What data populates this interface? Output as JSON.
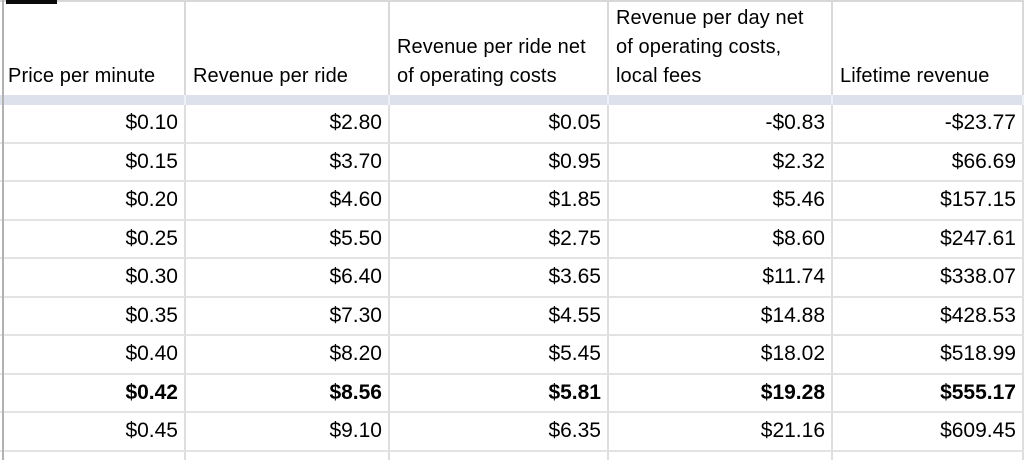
{
  "app": "spreadsheet",
  "colors": {
    "background": "#ffffff",
    "text": "#000000",
    "gridline": "#e3e3e3",
    "frozen_row_band": "#dce1ec",
    "left_edge_line": "#b2b2b2",
    "top_left_marker": "#0a0a0a"
  },
  "table": {
    "columns": [
      {
        "label": "Price per minute"
      },
      {
        "label": "Revenue per ride"
      },
      {
        "label": "Revenue per ride net of operating costs"
      },
      {
        "label": "Revenue per day net of operating costs, local fees"
      },
      {
        "label": "Lifetime revenue"
      }
    ],
    "rows": [
      {
        "bold": false,
        "cells": [
          "$0.10",
          "$2.80",
          "$0.05",
          "-$0.83",
          "-$23.77"
        ]
      },
      {
        "bold": false,
        "cells": [
          "$0.15",
          "$3.70",
          "$0.95",
          "$2.32",
          "$66.69"
        ]
      },
      {
        "bold": false,
        "cells": [
          "$0.20",
          "$4.60",
          "$1.85",
          "$5.46",
          "$157.15"
        ]
      },
      {
        "bold": false,
        "cells": [
          "$0.25",
          "$5.50",
          "$2.75",
          "$8.60",
          "$247.61"
        ]
      },
      {
        "bold": false,
        "cells": [
          "$0.30",
          "$6.40",
          "$3.65",
          "$11.74",
          "$338.07"
        ]
      },
      {
        "bold": false,
        "cells": [
          "$0.35",
          "$7.30",
          "$4.55",
          "$14.88",
          "$428.53"
        ]
      },
      {
        "bold": false,
        "cells": [
          "$0.40",
          "$8.20",
          "$5.45",
          "$18.02",
          "$518.99"
        ]
      },
      {
        "bold": true,
        "cells": [
          "$0.42",
          "$8.56",
          "$5.81",
          "$19.28",
          "$555.17"
        ]
      },
      {
        "bold": false,
        "cells": [
          "$0.45",
          "$9.10",
          "$6.35",
          "$21.16",
          "$609.45"
        ]
      }
    ]
  }
}
